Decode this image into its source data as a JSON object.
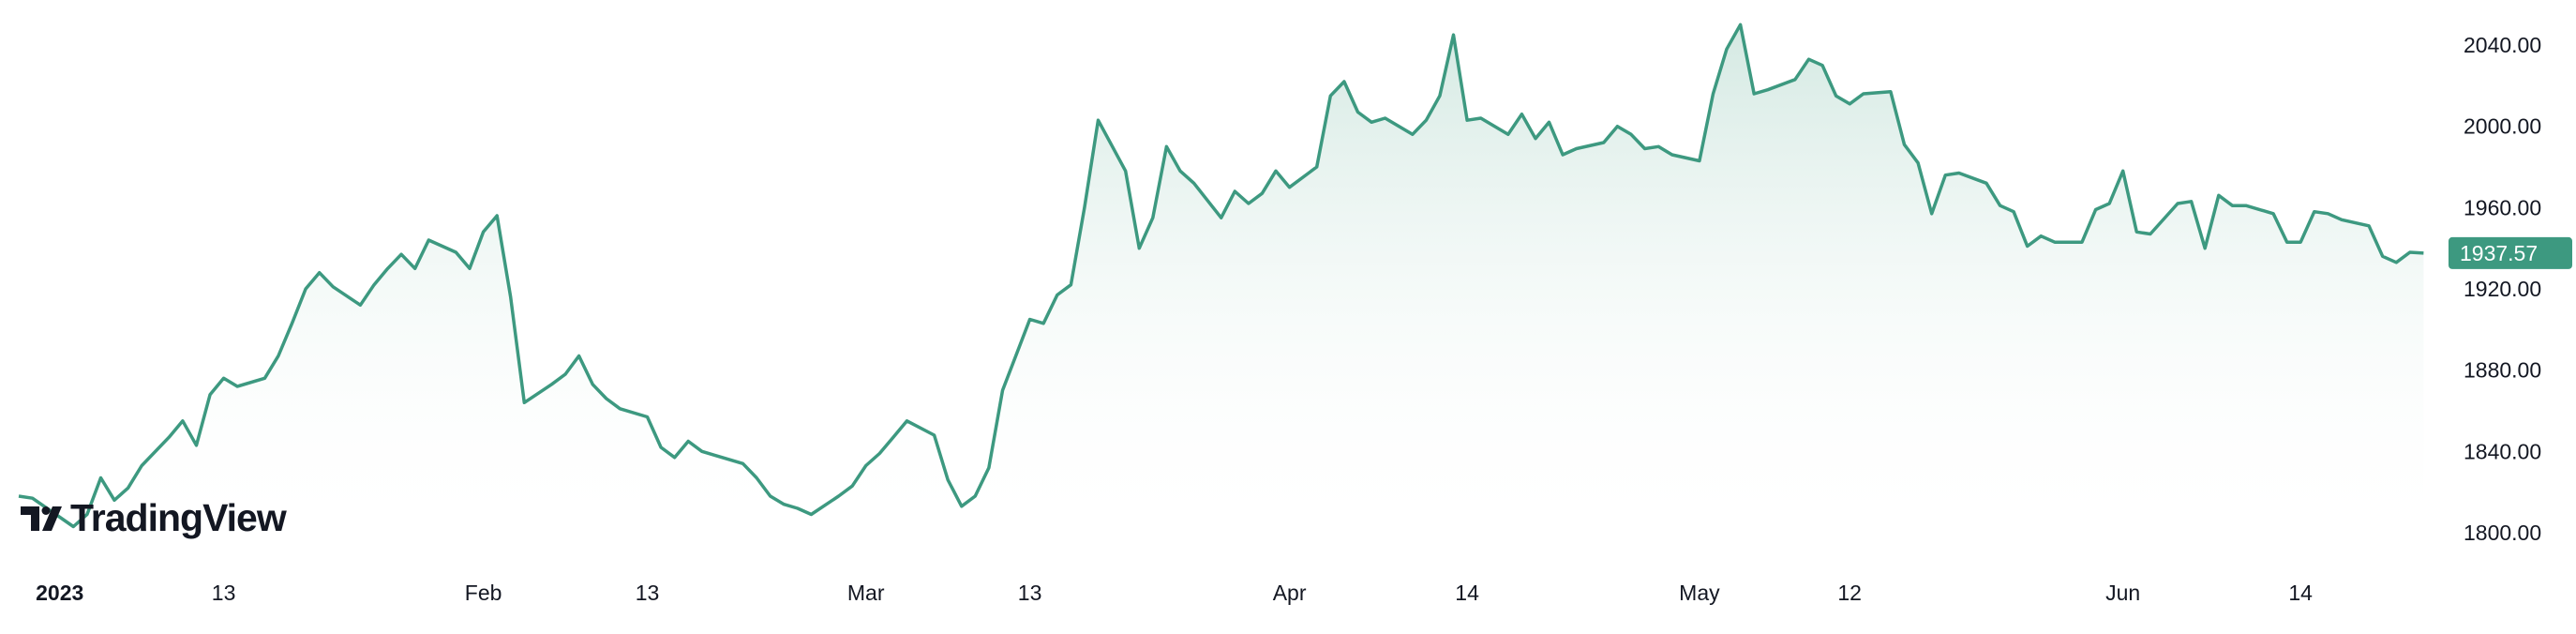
{
  "chart_data": {
    "type": "area",
    "ylim": [
      1790,
      2052
    ],
    "y_ticks": [
      "1800.00",
      "1840.00",
      "1880.00",
      "1920.00",
      "1960.00",
      "2000.00",
      "2040.00"
    ],
    "x_ticks": [
      {
        "label": "2023",
        "date": "2023-01-01",
        "bold": true
      },
      {
        "label": "13",
        "date": "2023-01-13"
      },
      {
        "label": "Feb",
        "date": "2023-02-01"
      },
      {
        "label": "13",
        "date": "2023-02-13"
      },
      {
        "label": "Mar",
        "date": "2023-03-01"
      },
      {
        "label": "13",
        "date": "2023-03-13"
      },
      {
        "label": "Apr",
        "date": "2023-04-01"
      },
      {
        "label": "14",
        "date": "2023-04-14"
      },
      {
        "label": "May",
        "date": "2023-05-01"
      },
      {
        "label": "12",
        "date": "2023-05-12"
      },
      {
        "label": "Jun",
        "date": "2023-06-01"
      },
      {
        "label": "14",
        "date": "2023-06-14"
      }
    ],
    "x_range": [
      "2022-12-29",
      "2023-06-24"
    ],
    "series": [
      {
        "points": [
          [
            "2022-12-29",
            1818
          ],
          [
            "2022-12-30",
            1817
          ],
          [
            "2023-01-02",
            1803
          ],
          [
            "2023-01-03",
            1809
          ],
          [
            "2023-01-04",
            1827
          ],
          [
            "2023-01-05",
            1816
          ],
          [
            "2023-01-06",
            1822
          ],
          [
            "2023-01-07",
            1833
          ],
          [
            "2023-01-09",
            1847
          ],
          [
            "2023-01-10",
            1855
          ],
          [
            "2023-01-11",
            1843
          ],
          [
            "2023-01-12",
            1868
          ],
          [
            "2023-01-13",
            1876
          ],
          [
            "2023-01-14",
            1872
          ],
          [
            "2023-01-16",
            1876
          ],
          [
            "2023-01-17",
            1887
          ],
          [
            "2023-01-18",
            1903
          ],
          [
            "2023-01-19",
            1920
          ],
          [
            "2023-01-20",
            1928
          ],
          [
            "2023-01-21",
            1921
          ],
          [
            "2023-01-23",
            1912
          ],
          [
            "2023-01-24",
            1922
          ],
          [
            "2023-01-25",
            1930
          ],
          [
            "2023-01-26",
            1937
          ],
          [
            "2023-01-27",
            1930
          ],
          [
            "2023-01-28",
            1944
          ],
          [
            "2023-01-30",
            1938
          ],
          [
            "2023-01-31",
            1930
          ],
          [
            "2023-02-01",
            1948
          ],
          [
            "2023-02-02",
            1956
          ],
          [
            "2023-02-03",
            1916
          ],
          [
            "2023-02-04",
            1864
          ],
          [
            "2023-02-06",
            1873
          ],
          [
            "2023-02-07",
            1878
          ],
          [
            "2023-02-08",
            1887
          ],
          [
            "2023-02-09",
            1873
          ],
          [
            "2023-02-10",
            1866
          ],
          [
            "2023-02-11",
            1861
          ],
          [
            "2023-02-13",
            1857
          ],
          [
            "2023-02-14",
            1842
          ],
          [
            "2023-02-15",
            1837
          ],
          [
            "2023-02-16",
            1845
          ],
          [
            "2023-02-17",
            1840
          ],
          [
            "2023-02-18",
            1838
          ],
          [
            "2023-02-20",
            1834
          ],
          [
            "2023-02-21",
            1827
          ],
          [
            "2023-02-22",
            1818
          ],
          [
            "2023-02-23",
            1814
          ],
          [
            "2023-02-24",
            1812
          ],
          [
            "2023-02-25",
            1809
          ],
          [
            "2023-02-27",
            1818
          ],
          [
            "2023-02-28",
            1823
          ],
          [
            "2023-03-01",
            1833
          ],
          [
            "2023-03-02",
            1839
          ],
          [
            "2023-03-03",
            1847
          ],
          [
            "2023-03-04",
            1855
          ],
          [
            "2023-03-06",
            1848
          ],
          [
            "2023-03-07",
            1826
          ],
          [
            "2023-03-08",
            1813
          ],
          [
            "2023-03-09",
            1818
          ],
          [
            "2023-03-10",
            1832
          ],
          [
            "2023-03-11",
            1870
          ],
          [
            "2023-03-13",
            1905
          ],
          [
            "2023-03-14",
            1903
          ],
          [
            "2023-03-15",
            1917
          ],
          [
            "2023-03-16",
            1922
          ],
          [
            "2023-03-17",
            1960
          ],
          [
            "2023-03-18",
            2003
          ],
          [
            "2023-03-20",
            1978
          ],
          [
            "2023-03-21",
            1940
          ],
          [
            "2023-03-22",
            1955
          ],
          [
            "2023-03-23",
            1990
          ],
          [
            "2023-03-24",
            1978
          ],
          [
            "2023-03-25",
            1972
          ],
          [
            "2023-03-27",
            1955
          ],
          [
            "2023-03-28",
            1968
          ],
          [
            "2023-03-29",
            1962
          ],
          [
            "2023-03-30",
            1967
          ],
          [
            "2023-03-31",
            1978
          ],
          [
            "2023-04-01",
            1970
          ],
          [
            "2023-04-03",
            1980
          ],
          [
            "2023-04-04",
            2015
          ],
          [
            "2023-04-05",
            2022
          ],
          [
            "2023-04-06",
            2007
          ],
          [
            "2023-04-07",
            2002
          ],
          [
            "2023-04-08",
            2004
          ],
          [
            "2023-04-10",
            1996
          ],
          [
            "2023-04-11",
            2003
          ],
          [
            "2023-04-12",
            2015
          ],
          [
            "2023-04-13",
            2045
          ],
          [
            "2023-04-14",
            2003
          ],
          [
            "2023-04-15",
            2004
          ],
          [
            "2023-04-17",
            1996
          ],
          [
            "2023-04-18",
            2006
          ],
          [
            "2023-04-19",
            1994
          ],
          [
            "2023-04-20",
            2002
          ],
          [
            "2023-04-21",
            1986
          ],
          [
            "2023-04-22",
            1989
          ],
          [
            "2023-04-24",
            1992
          ],
          [
            "2023-04-25",
            2000
          ],
          [
            "2023-04-26",
            1996
          ],
          [
            "2023-04-27",
            1989
          ],
          [
            "2023-04-28",
            1990
          ],
          [
            "2023-04-29",
            1986
          ],
          [
            "2023-05-01",
            1983
          ],
          [
            "2023-05-02",
            2016
          ],
          [
            "2023-05-03",
            2038
          ],
          [
            "2023-05-04",
            2050
          ],
          [
            "2023-05-05",
            2016
          ],
          [
            "2023-05-06",
            2018
          ],
          [
            "2023-05-08",
            2023
          ],
          [
            "2023-05-09",
            2033
          ],
          [
            "2023-05-10",
            2030
          ],
          [
            "2023-05-11",
            2015
          ],
          [
            "2023-05-12",
            2011
          ],
          [
            "2023-05-13",
            2016
          ],
          [
            "2023-05-15",
            2017
          ],
          [
            "2023-05-16",
            1991
          ],
          [
            "2023-05-17",
            1982
          ],
          [
            "2023-05-18",
            1957
          ],
          [
            "2023-05-19",
            1976
          ],
          [
            "2023-05-20",
            1977
          ],
          [
            "2023-05-22",
            1972
          ],
          [
            "2023-05-23",
            1961
          ],
          [
            "2023-05-24",
            1958
          ],
          [
            "2023-05-25",
            1941
          ],
          [
            "2023-05-26",
            1946
          ],
          [
            "2023-05-27",
            1943
          ],
          [
            "2023-05-29",
            1943
          ],
          [
            "2023-05-30",
            1959
          ],
          [
            "2023-05-31",
            1962
          ],
          [
            "2023-06-01",
            1978
          ],
          [
            "2023-06-02",
            1948
          ],
          [
            "2023-06-03",
            1947
          ],
          [
            "2023-06-05",
            1962
          ],
          [
            "2023-06-06",
            1963
          ],
          [
            "2023-06-07",
            1940
          ],
          [
            "2023-06-08",
            1966
          ],
          [
            "2023-06-09",
            1961
          ],
          [
            "2023-06-10",
            1961
          ],
          [
            "2023-06-12",
            1957
          ],
          [
            "2023-06-13",
            1943
          ],
          [
            "2023-06-14",
            1943
          ],
          [
            "2023-06-15",
            1958
          ],
          [
            "2023-06-16",
            1957
          ],
          [
            "2023-06-17",
            1954
          ],
          [
            "2023-06-19",
            1951
          ],
          [
            "2023-06-20",
            1936
          ],
          [
            "2023-06-21",
            1933
          ],
          [
            "2023-06-22",
            1938
          ],
          [
            "2023-06-23",
            1937.57
          ]
        ]
      }
    ],
    "last_value": "1937.57",
    "grid": false,
    "colors": {
      "line": "#3d9980",
      "fill_top": "#cce5dd",
      "fill_bottom": "#ffffff",
      "label_bg": "#3d9980",
      "text": "#131722"
    }
  },
  "logo": {
    "text": "TradingView"
  }
}
